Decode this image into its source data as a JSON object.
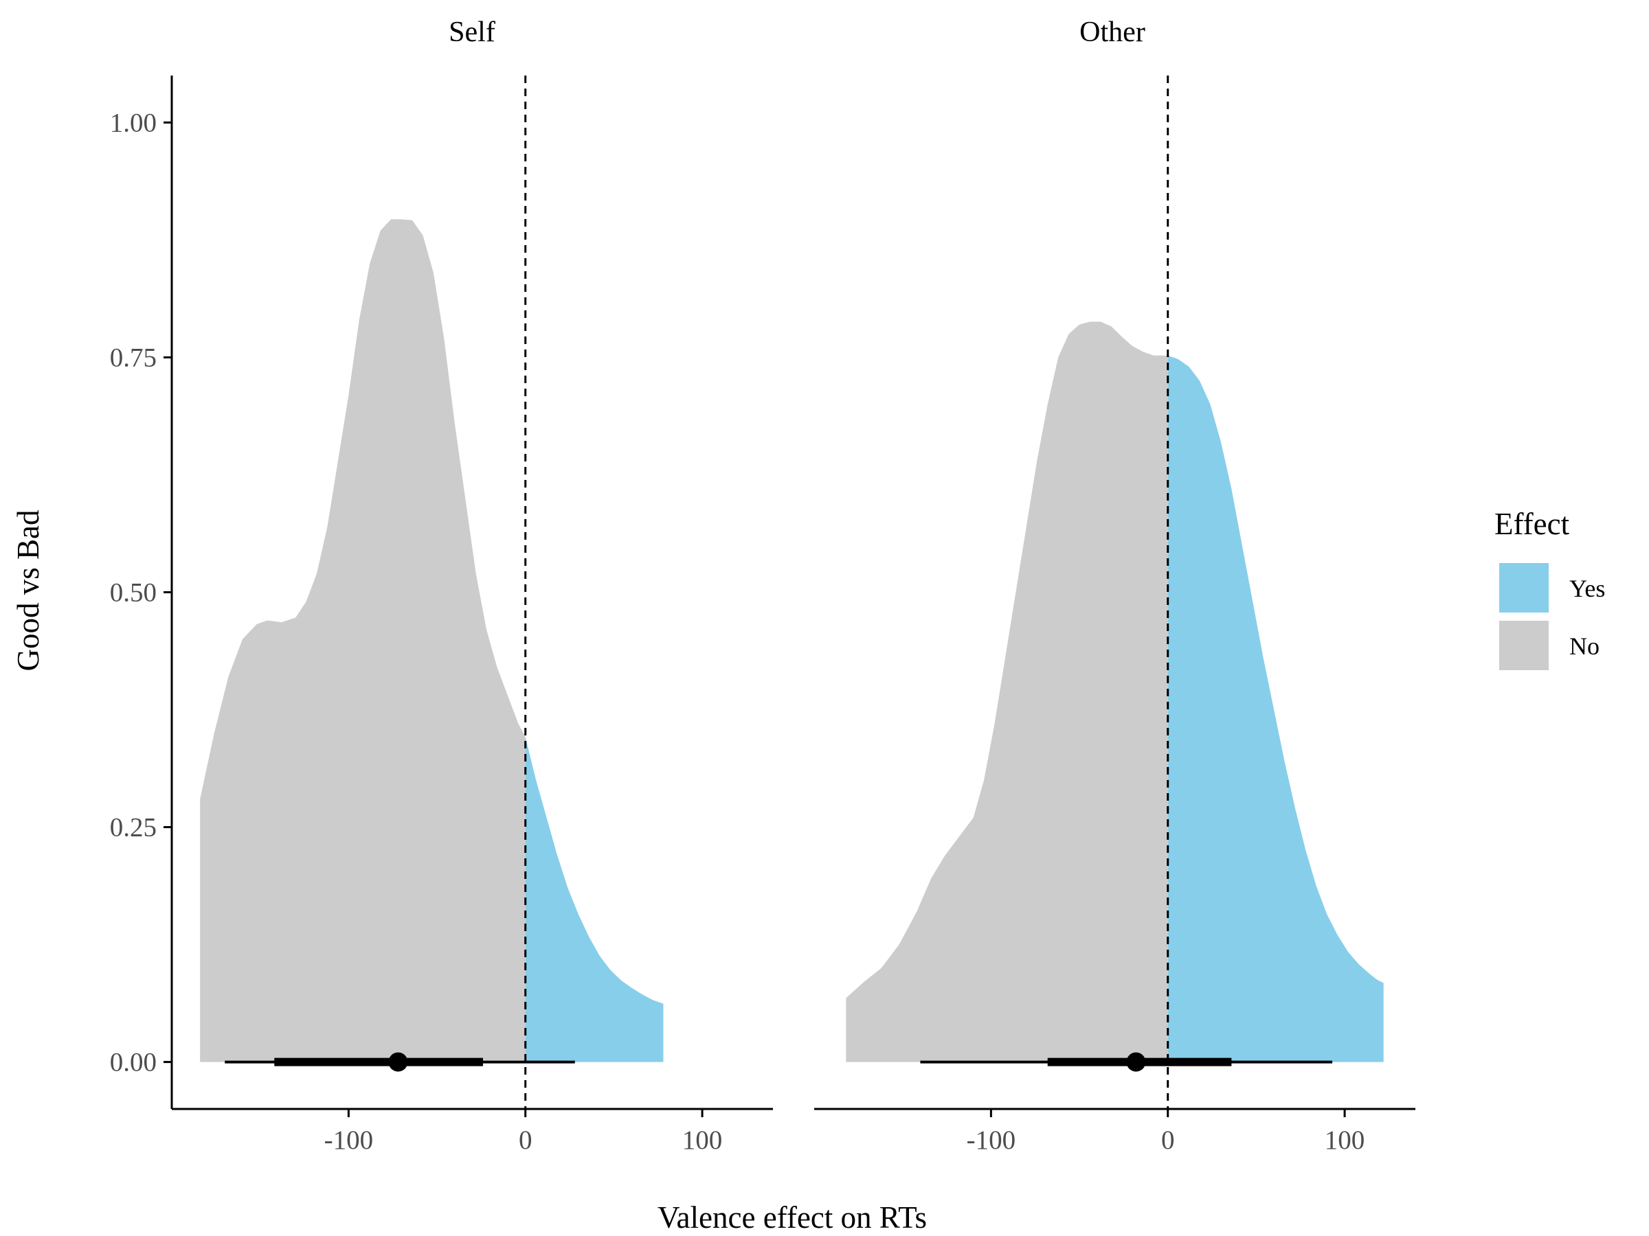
{
  "chart_data": {
    "type": "area",
    "xlabel": "Valence effect on RTs",
    "ylabel": "Good vs Bad",
    "xlim": [
      -200,
      140
    ],
    "ylim": [
      -0.05,
      1.05
    ],
    "x_ticks": [
      -100,
      0,
      100
    ],
    "x_tick_labels": [
      "-100",
      "0",
      "100"
    ],
    "y_ticks": [
      0,
      0.25,
      0.5,
      0.75,
      1.0
    ],
    "y_tick_labels": [
      "0.00",
      "0.25",
      "0.50",
      "0.75",
      "1.00"
    ],
    "reference_line_x": 0,
    "grid": false,
    "legend": {
      "title": "Effect",
      "position": "right",
      "entries": [
        {
          "label": "Yes",
          "color": "#87CEEB"
        },
        {
          "label": "No",
          "color": "#CCCCCC"
        }
      ]
    },
    "panels": [
      {
        "title": "Self",
        "density": {
          "x": [
            -184,
            -176,
            -168,
            -160,
            -152,
            -146,
            -138,
            -130,
            -124,
            -118,
            -112,
            -106,
            -100,
            -94,
            -88,
            -82,
            -76,
            -70,
            -64,
            -58,
            -52,
            -46,
            -40,
            -34,
            -28,
            -22,
            -16,
            -10,
            -4,
            0,
            6,
            12,
            18,
            24,
            30,
            36,
            42,
            48,
            54,
            60,
            66,
            72,
            78
          ],
          "y": [
            0.28,
            0.35,
            0.41,
            0.45,
            0.466,
            0.47,
            0.468,
            0.473,
            0.49,
            0.52,
            0.57,
            0.64,
            0.71,
            0.79,
            0.85,
            0.885,
            0.897,
            0.897,
            0.896,
            0.88,
            0.84,
            0.77,
            0.68,
            0.6,
            0.52,
            0.46,
            0.42,
            0.39,
            0.36,
            0.346,
            0.3,
            0.26,
            0.22,
            0.185,
            0.157,
            0.133,
            0.113,
            0.098,
            0.087,
            0.079,
            0.072,
            0.066,
            0.062
          ]
        },
        "point_estimate": -72,
        "interval_inner": [
          -142,
          -24
        ],
        "interval_outer": [
          -170,
          28
        ]
      },
      {
        "title": "Other",
        "density": {
          "x": [
            -182,
            -172,
            -162,
            -152,
            -142,
            -134,
            -126,
            -118,
            -110,
            -104,
            -98,
            -92,
            -86,
            -80,
            -74,
            -68,
            -62,
            -56,
            -50,
            -44,
            -38,
            -32,
            -26,
            -20,
            -14,
            -8,
            -2,
            0,
            6,
            12,
            18,
            24,
            30,
            36,
            42,
            48,
            54,
            60,
            66,
            72,
            78,
            84,
            90,
            96,
            102,
            108,
            114,
            118,
            122
          ],
          "y": [
            0.068,
            0.085,
            0.1,
            0.125,
            0.16,
            0.195,
            0.22,
            0.24,
            0.26,
            0.3,
            0.36,
            0.43,
            0.5,
            0.57,
            0.64,
            0.7,
            0.75,
            0.775,
            0.785,
            0.788,
            0.788,
            0.783,
            0.772,
            0.762,
            0.756,
            0.752,
            0.752,
            0.752,
            0.748,
            0.74,
            0.725,
            0.7,
            0.66,
            0.61,
            0.55,
            0.49,
            0.43,
            0.375,
            0.32,
            0.27,
            0.225,
            0.187,
            0.157,
            0.135,
            0.117,
            0.104,
            0.094,
            0.088,
            0.084
          ]
        },
        "point_estimate": -18,
        "interval_inner": [
          -68,
          36
        ],
        "interval_outer": [
          -140,
          93
        ]
      }
    ]
  }
}
